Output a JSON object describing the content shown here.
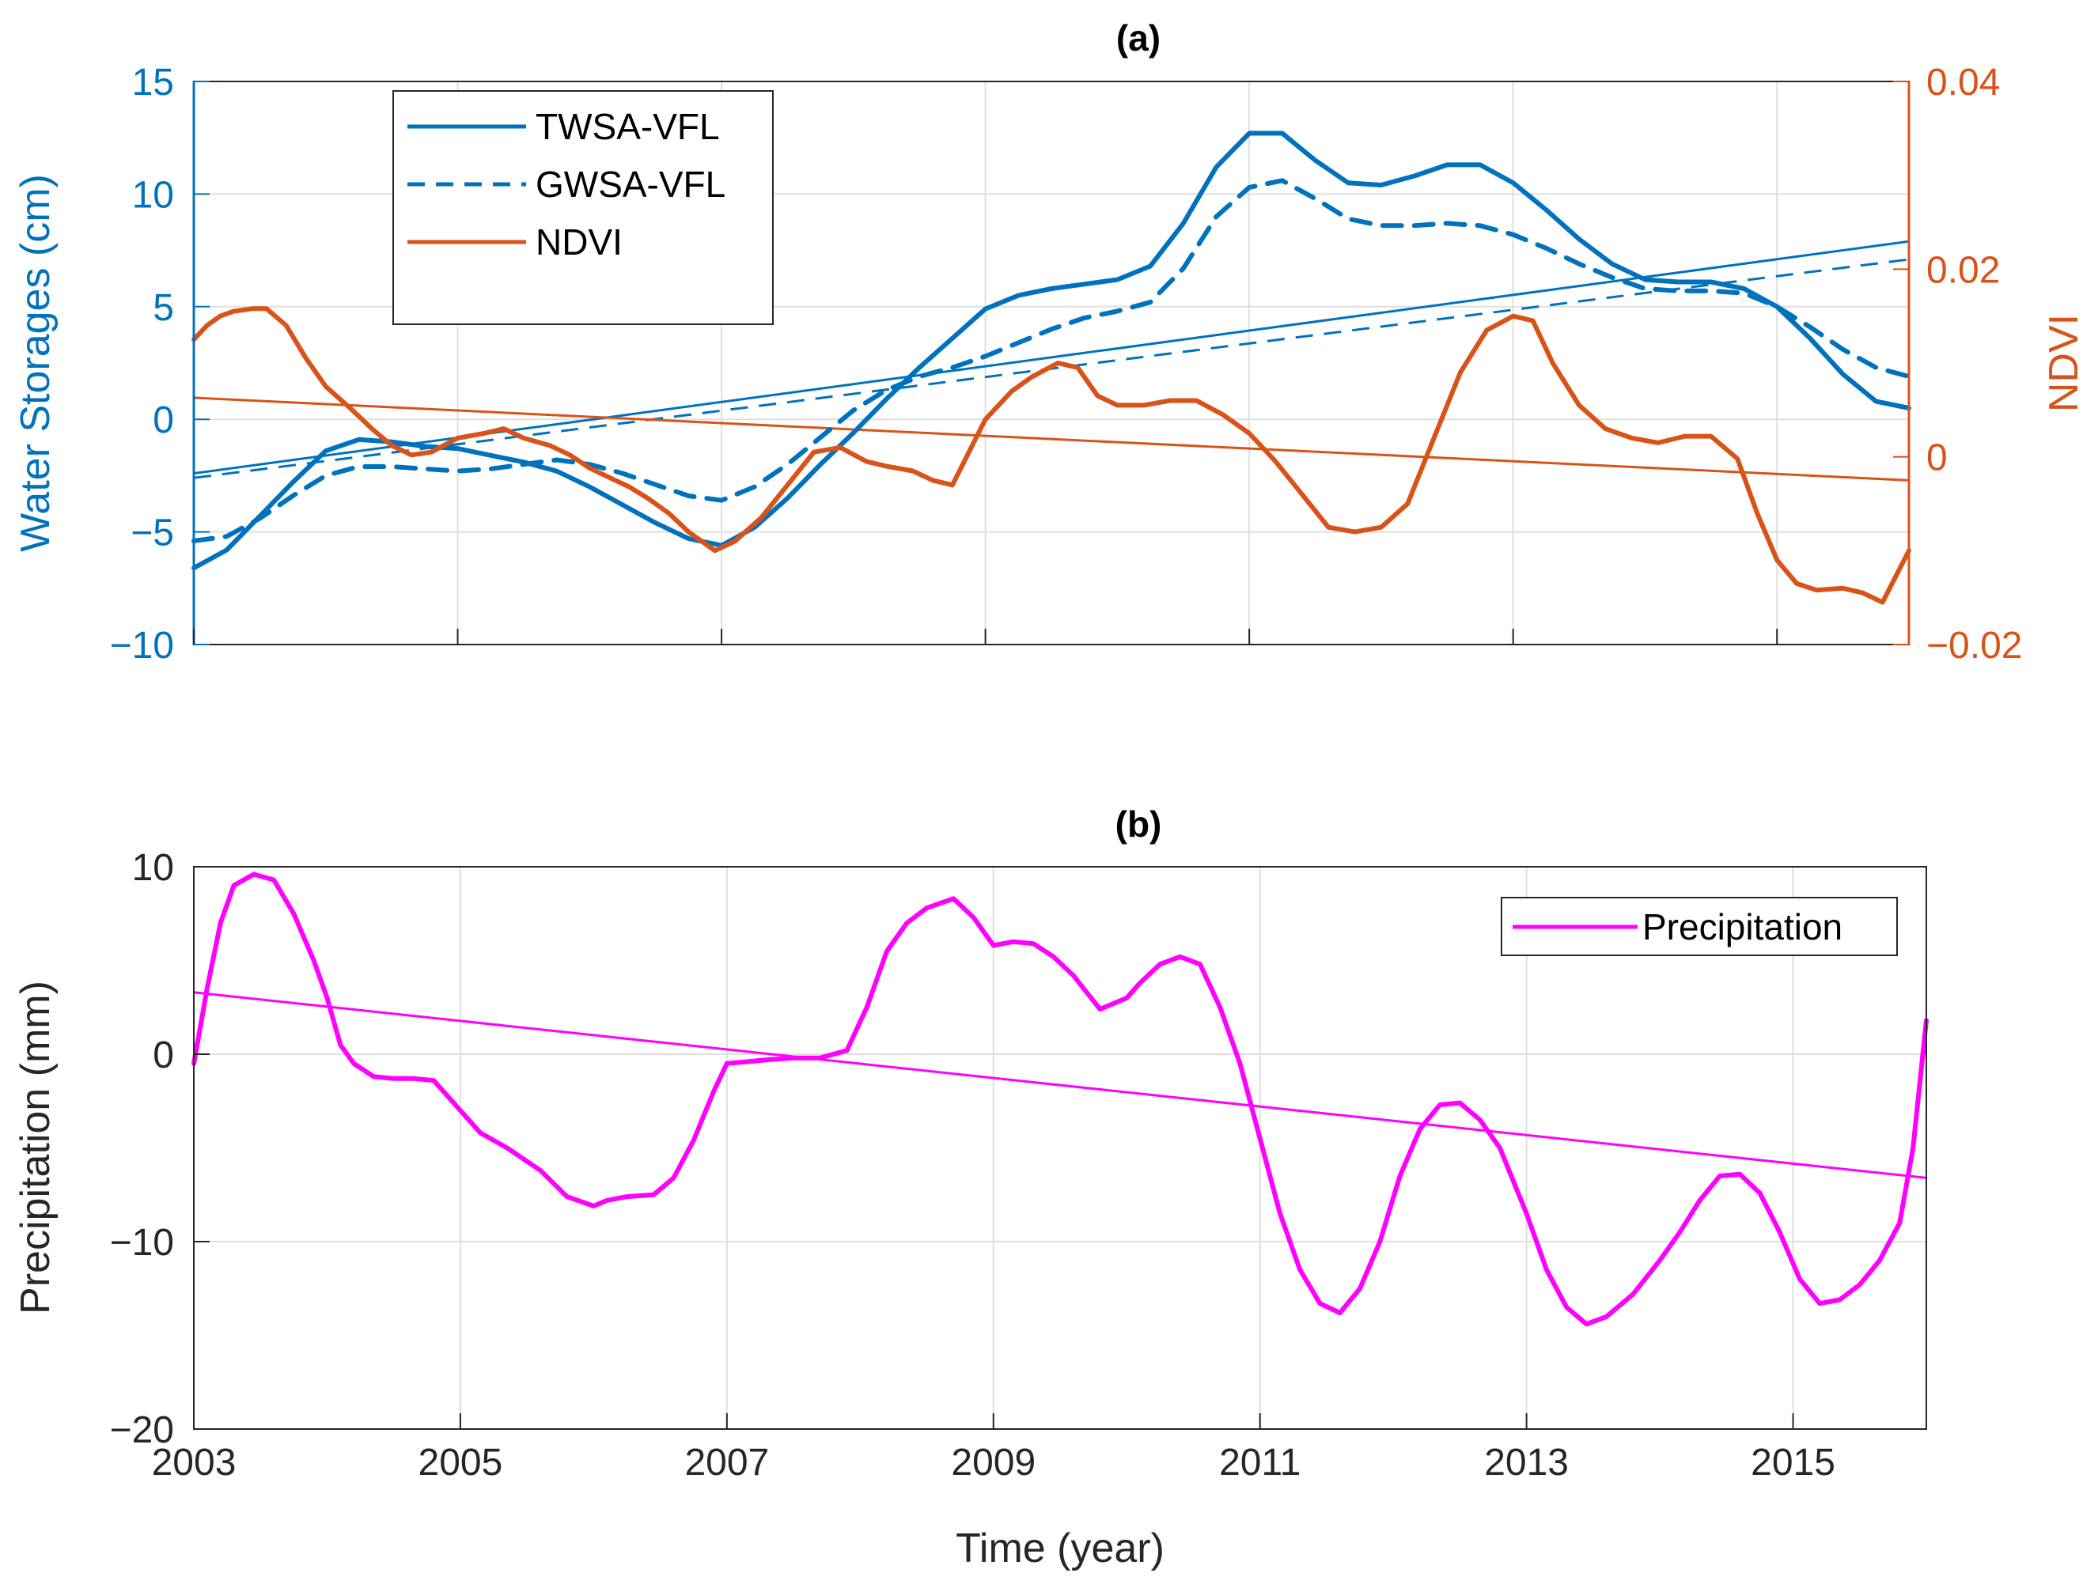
{
  "chart_data": [
    {
      "type": "line",
      "title": "(a)",
      "xlabel": "",
      "ylabel_left": "Water Storages (cm)",
      "ylabel_right": "NDVI",
      "xlim": [
        2003,
        2016
      ],
      "ylim_left": [
        -10,
        15
      ],
      "ylim_right": [
        -0.02,
        0.04
      ],
      "xticks": [
        2003,
        2005,
        2007,
        2009,
        2011,
        2013,
        2015
      ],
      "yticks_left": [
        -10,
        -5,
        0,
        5,
        10,
        15
      ],
      "yticks_left_labels": [
        "−10",
        "−5",
        "0",
        "5",
        "10",
        "15"
      ],
      "yticks_right": [
        -0.02,
        0,
        0.02,
        0.04
      ],
      "yticks_right_labels": [
        "−0.02",
        "0",
        "0.02",
        "0.04"
      ],
      "show_xtick_labels": false,
      "grid": true,
      "legend_position": "top-left",
      "colors": {
        "left_axis": "#0072BD",
        "right_axis": "#D95319",
        "grid": "#dfdfdf"
      },
      "series": [
        {
          "name": "TWSA-VFL",
          "axis": "left",
          "color": "#0072BD",
          "style": "solid",
          "x": [
            2003.0,
            2003.25,
            2003.5,
            2003.75,
            2004.0,
            2004.25,
            2004.5,
            2004.75,
            2005.0,
            2005.25,
            2005.5,
            2005.75,
            2006.0,
            2006.25,
            2006.5,
            2006.75,
            2007.0,
            2007.25,
            2007.5,
            2007.75,
            2008.0,
            2008.25,
            2008.5,
            2008.75,
            2009.0,
            2009.25,
            2009.5,
            2009.75,
            2010.0,
            2010.25,
            2010.5,
            2010.75,
            2011.0,
            2011.25,
            2011.5,
            2011.75,
            2012.0,
            2012.25,
            2012.5,
            2012.75,
            2013.0,
            2013.25,
            2013.5,
            2013.75,
            2014.0,
            2014.25,
            2014.5,
            2014.75,
            2015.0,
            2015.25,
            2015.5,
            2015.75,
            2016.0
          ],
          "y": [
            -6.6,
            -5.8,
            -4.3,
            -2.8,
            -1.4,
            -0.9,
            -1.0,
            -1.2,
            -1.3,
            -1.6,
            -1.9,
            -2.3,
            -3.0,
            -3.8,
            -4.6,
            -5.3,
            -5.6,
            -4.8,
            -3.5,
            -2.0,
            -0.6,
            0.9,
            2.3,
            3.6,
            4.9,
            5.5,
            5.8,
            6.0,
            6.2,
            6.8,
            8.7,
            11.2,
            12.7,
            12.7,
            11.5,
            10.5,
            10.4,
            10.8,
            11.3,
            11.3,
            10.5,
            9.3,
            8.0,
            6.9,
            6.2,
            6.1,
            6.1,
            5.8,
            5.0,
            3.6,
            2.0,
            0.8,
            0.5
          ]
        },
        {
          "name": "GWSA-VFL",
          "axis": "left",
          "color": "#0072BD",
          "style": "dashed",
          "x": [
            2003.0,
            2003.25,
            2003.5,
            2003.75,
            2004.0,
            2004.25,
            2004.5,
            2004.75,
            2005.0,
            2005.25,
            2005.5,
            2005.75,
            2006.0,
            2006.25,
            2006.5,
            2006.75,
            2007.0,
            2007.25,
            2007.5,
            2007.75,
            2008.0,
            2008.25,
            2008.5,
            2008.75,
            2009.0,
            2009.25,
            2009.5,
            2009.75,
            2010.0,
            2010.25,
            2010.5,
            2010.75,
            2011.0,
            2011.25,
            2011.5,
            2011.75,
            2012.0,
            2012.25,
            2012.5,
            2012.75,
            2013.0,
            2013.25,
            2013.5,
            2013.75,
            2014.0,
            2014.25,
            2014.5,
            2014.75,
            2015.0,
            2015.25,
            2015.5,
            2015.75,
            2016.0
          ],
          "y": [
            -5.4,
            -5.2,
            -4.4,
            -3.4,
            -2.5,
            -2.1,
            -2.1,
            -2.2,
            -2.3,
            -2.2,
            -2.0,
            -1.8,
            -2.0,
            -2.4,
            -2.9,
            -3.4,
            -3.6,
            -3.0,
            -2.0,
            -0.8,
            0.4,
            1.3,
            1.9,
            2.3,
            2.8,
            3.4,
            4.0,
            4.5,
            4.8,
            5.2,
            6.7,
            9.0,
            10.3,
            10.6,
            9.8,
            8.9,
            8.6,
            8.6,
            8.7,
            8.6,
            8.2,
            7.6,
            6.9,
            6.3,
            5.8,
            5.7,
            5.7,
            5.6,
            5.0,
            4.1,
            3.1,
            2.3,
            1.9
          ]
        },
        {
          "name": "NDVI",
          "axis": "right",
          "color": "#D95319",
          "style": "solid",
          "x": [
            2003.0,
            2003.1,
            2003.2,
            2003.3,
            2003.45,
            2003.55,
            2003.7,
            2003.85,
            2004.0,
            2004.2,
            2004.35,
            2004.5,
            2004.65,
            2004.8,
            2005.0,
            2005.2,
            2005.35,
            2005.5,
            2005.7,
            2005.85,
            2006.0,
            2006.15,
            2006.3,
            2006.45,
            2006.6,
            2006.75,
            2006.95,
            2007.1,
            2007.3,
            2007.5,
            2007.7,
            2007.9,
            2008.1,
            2008.25,
            2008.45,
            2008.6,
            2008.75,
            2009.0,
            2009.2,
            2009.35,
            2009.55,
            2009.7,
            2009.85,
            2010.0,
            2010.2,
            2010.4,
            2010.6,
            2010.8,
            2011.0,
            2011.2,
            2011.4,
            2011.6,
            2011.8,
            2012.0,
            2012.2,
            2012.4,
            2012.6,
            2012.8,
            2013.0,
            2013.15,
            2013.3,
            2013.5,
            2013.7,
            2013.9,
            2014.1,
            2014.3,
            2014.5,
            2014.7,
            2014.85,
            2015.0,
            2015.15,
            2015.3,
            2015.5,
            2015.65,
            2015.8,
            2016.0
          ],
          "y": [
            0.0125,
            0.014,
            0.015,
            0.0155,
            0.0158,
            0.0158,
            0.014,
            0.0105,
            0.0075,
            0.005,
            0.003,
            0.0012,
            0.0002,
            0.0005,
            0.002,
            0.0025,
            0.003,
            0.002,
            0.0012,
            0.0002,
            -0.0012,
            -0.0022,
            -0.0032,
            -0.0045,
            -0.006,
            -0.008,
            -0.01,
            -0.009,
            -0.0065,
            -0.003,
            0.0005,
            0.001,
            -0.0005,
            -0.001,
            -0.0015,
            -0.0025,
            -0.003,
            0.004,
            0.007,
            0.0085,
            0.01,
            0.0095,
            0.0065,
            0.0055,
            0.0055,
            0.006,
            0.006,
            0.0045,
            0.0025,
            -0.0005,
            -0.004,
            -0.0075,
            -0.008,
            -0.0075,
            -0.005,
            0.002,
            0.009,
            0.0135,
            0.015,
            0.0145,
            0.01,
            0.0055,
            0.003,
            0.002,
            0.0015,
            0.0022,
            0.0022,
            -0.0002,
            -0.006,
            -0.011,
            -0.0135,
            -0.0142,
            -0.014,
            -0.0145,
            -0.0155,
            -0.01
          ]
        }
      ],
      "trendlines": [
        {
          "axis": "left",
          "color": "#0072BD",
          "style": "solid",
          "x": [
            2003,
            2016
          ],
          "y": [
            -2.4,
            7.9
          ]
        },
        {
          "axis": "left",
          "color": "#0072BD",
          "style": "dashed",
          "x": [
            2003,
            2016
          ],
          "y": [
            -2.6,
            7.1
          ]
        },
        {
          "axis": "right",
          "color": "#D95319",
          "style": "solid",
          "x": [
            2003,
            2016
          ],
          "y": [
            0.0063,
            -0.0025
          ]
        }
      ]
    },
    {
      "type": "line",
      "title": "(b)",
      "xlabel": "Time (year)",
      "ylabel": "Precipitation (mm)",
      "xlim": [
        2003,
        2016
      ],
      "ylim": [
        -20,
        10
      ],
      "xticks": [
        2003,
        2005,
        2007,
        2009,
        2011,
        2013,
        2015
      ],
      "xticks_labels": [
        "2003",
        "2005",
        "2007",
        "2009",
        "2011",
        "2013",
        "2015"
      ],
      "yticks": [
        -20,
        -10,
        0,
        10
      ],
      "yticks_labels": [
        "−20",
        "−10",
        "0",
        "10"
      ],
      "grid": true,
      "legend_position": "top-right",
      "colors": {
        "axis": "#262626",
        "grid": "#dfdfdf"
      },
      "series": [
        {
          "name": "Precipitation",
          "color": "#FF00FF",
          "style": "solid",
          "x": [
            2003.0,
            2003.1,
            2003.2,
            2003.3,
            2003.45,
            2003.6,
            2003.75,
            2003.9,
            2004.0,
            2004.1,
            2004.2,
            2004.35,
            2004.5,
            2004.65,
            2004.8,
            2005.0,
            2005.15,
            2005.35,
            2005.6,
            2005.8,
            2006.0,
            2006.1,
            2006.25,
            2006.45,
            2006.6,
            2006.75,
            2006.9,
            2007.0,
            2007.15,
            2007.3,
            2007.5,
            2007.7,
            2007.9,
            2008.05,
            2008.2,
            2008.35,
            2008.5,
            2008.7,
            2008.85,
            2009.0,
            2009.15,
            2009.3,
            2009.45,
            2009.6,
            2009.8,
            2010.0,
            2010.1,
            2010.25,
            2010.4,
            2010.55,
            2010.7,
            2010.85,
            2011.0,
            2011.15,
            2011.3,
            2011.45,
            2011.6,
            2011.75,
            2011.9,
            2012.05,
            2012.2,
            2012.35,
            2012.5,
            2012.65,
            2012.8,
            2013.0,
            2013.15,
            2013.3,
            2013.45,
            2013.6,
            2013.8,
            2014.0,
            2014.15,
            2014.3,
            2014.45,
            2014.6,
            2014.75,
            2014.9,
            2015.05,
            2015.2,
            2015.35,
            2015.5,
            2015.65,
            2015.8,
            2015.9,
            2016.0
          ],
          "y": [
            -0.5,
            3.5,
            7.0,
            9.0,
            9.6,
            9.3,
            7.5,
            5.0,
            3.0,
            0.5,
            -0.5,
            -1.2,
            -1.3,
            -1.3,
            -1.4,
            -3.0,
            -4.2,
            -5.0,
            -6.2,
            -7.6,
            -8.1,
            -7.8,
            -7.6,
            -7.5,
            -6.6,
            -4.6,
            -2.0,
            -0.5,
            -0.4,
            -0.3,
            -0.2,
            -0.2,
            0.2,
            2.5,
            5.5,
            7.0,
            7.8,
            8.3,
            7.3,
            5.8,
            6.0,
            5.9,
            5.2,
            4.2,
            2.4,
            3.0,
            3.8,
            4.8,
            5.2,
            4.8,
            2.5,
            -0.5,
            -4.5,
            -8.5,
            -11.5,
            -13.3,
            -13.8,
            -12.5,
            -10.0,
            -6.5,
            -4.0,
            -2.7,
            -2.6,
            -3.5,
            -5.0,
            -8.5,
            -11.5,
            -13.5,
            -14.4,
            -14.0,
            -12.8,
            -11.0,
            -9.5,
            -7.8,
            -6.5,
            -6.4,
            -7.4,
            -9.5,
            -12.0,
            -13.3,
            -13.1,
            -12.3,
            -11.0,
            -9.0,
            -5.0,
            1.8
          ]
        }
      ],
      "trendlines": [
        {
          "color": "#FF00FF",
          "style": "solid",
          "x": [
            2003,
            2016
          ],
          "y": [
            3.3,
            -6.6
          ]
        }
      ]
    }
  ]
}
